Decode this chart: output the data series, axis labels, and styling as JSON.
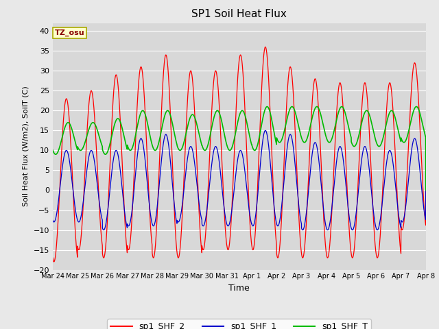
{
  "title": "SP1 Soil Heat Flux",
  "xlabel": "Time",
  "ylabel": "Soil Heat Flux (W/m2), SoilT (C)",
  "ylim": [
    -20,
    42
  ],
  "yticks": [
    -20,
    -15,
    -10,
    -5,
    0,
    5,
    10,
    15,
    20,
    25,
    30,
    35,
    40
  ],
  "fig_bg": "#e8e8e8",
  "plot_bg": "#d8d8d8",
  "grid_color": "#ffffff",
  "tz_label": "TZ_osu",
  "tz_box_color": "#ffffcc",
  "tz_text_color": "#880000",
  "tz_border_color": "#aaaa00",
  "colors": {
    "sp1_SHF_2": "#ff0000",
    "sp1_SHF_1": "#0000cc",
    "sp1_SHF_T": "#00bb00"
  },
  "legend_labels": [
    "sp1_SHF_2",
    "sp1_SHF_1",
    "sp1_SHF_T"
  ],
  "x_tick_labels": [
    "Mar 24",
    "Mar 25",
    "Mar 26",
    "Mar 27",
    "Mar 28",
    "Mar 29",
    "Mar 30",
    "Mar 31",
    "Apr 1",
    "Apr 2",
    "Apr 3",
    "Apr 4",
    "Apr 5",
    "Apr 6",
    "Apr 7",
    "Apr 8"
  ],
  "num_days": 15,
  "points_per_day": 240,
  "shf2_peaks": [
    23,
    25,
    29,
    31,
    34,
    30,
    30,
    34,
    36,
    31,
    28,
    27,
    27,
    27,
    32
  ],
  "shf2_troughs": [
    -18,
    -15,
    -17,
    -15,
    -17,
    -17,
    -15,
    -15,
    -15,
    -17,
    -17,
    -17,
    -17,
    -17,
    -10
  ],
  "shf1_peaks": [
    10,
    10,
    10,
    13,
    14,
    11,
    11,
    10,
    15,
    14,
    12,
    11,
    11,
    10,
    13
  ],
  "shf1_troughs": [
    -8,
    -8,
    -10,
    -9,
    -9,
    -8,
    -9,
    -9,
    -9,
    -9,
    -10,
    -10,
    -10,
    -10,
    -8
  ],
  "shft_peaks": [
    17,
    17,
    18,
    20,
    20,
    19,
    20,
    20,
    21,
    21,
    21,
    21,
    20,
    20,
    21
  ],
  "shft_troughs": [
    9,
    10,
    9,
    10,
    10,
    10,
    10,
    10,
    10,
    12,
    12,
    12,
    11,
    11,
    12
  ],
  "peak_phase": 0.55,
  "trough_phase": 0.05
}
